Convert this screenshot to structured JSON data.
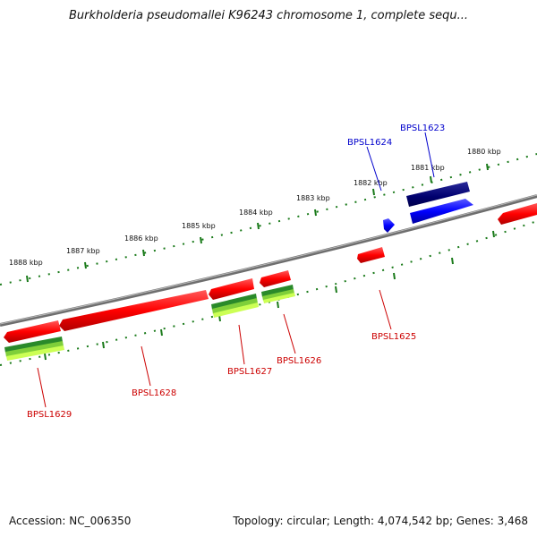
{
  "title": "Burkholderia pseudomallei K96243 chromosome 1, complete sequ...",
  "footer": {
    "accession": "Accession: NC_006350",
    "summary": "Topology: circular; Length: 4,074,542 bp; Genes: 3,468"
  },
  "colors": {
    "forward_gene": "#ff0000",
    "reverse_label": "#cc0000",
    "blue_label": "#0000cc",
    "track_tick": "#1a7a1a",
    "backbone": "#808080"
  },
  "scale_labels": [
    "1880 kbp",
    "1881 kbp",
    "1882 kbp",
    "1883 kbp",
    "1884 kbp",
    "1885 kbp",
    "1886 kbp",
    "1887 kbp",
    "1888 kbp"
  ],
  "gene_labels": {
    "BPSL1623": "BPSL1623",
    "BPSL1624": "BPSL1624",
    "BPSL1625": "BPSL1625",
    "BPSL1626": "BPSL1626",
    "BPSL1627": "BPSL1627",
    "BPSL1628": "BPSL1628",
    "BPSL1629": "BPSL1629"
  }
}
